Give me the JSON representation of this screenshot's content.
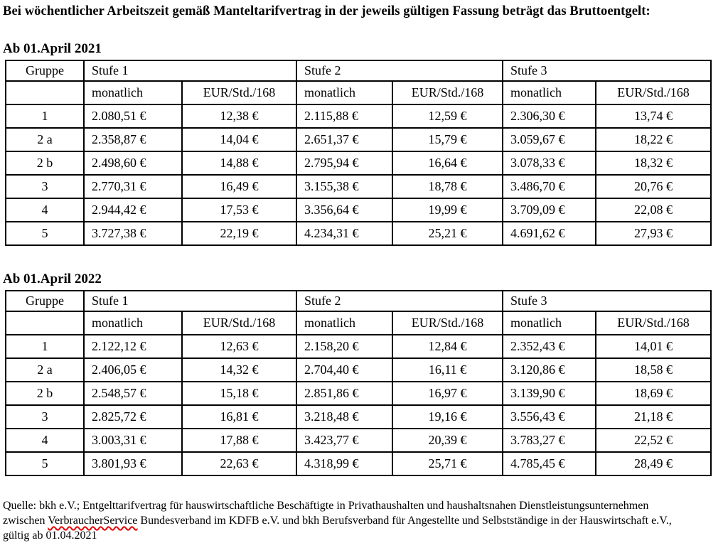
{
  "title": "Bei wöchentlicher Arbeitszeit gemäß Manteltarifvertrag in der jeweils gültigen Fassung beträgt das Bruttoentgelt:",
  "sections": [
    {
      "heading": "Ab 01.April 2021",
      "headers": {
        "group": "Gruppe",
        "stufe1": "Stufe 1",
        "stufe2": "Stufe 2",
        "stufe3": "Stufe 3",
        "monthly": "monatlich",
        "per_hour": "EUR/Std./168"
      },
      "rows": [
        [
          "1",
          "2.080,51 €",
          "12,38 €",
          "2.115,88 €",
          "12,59 €",
          "2.306,30 €",
          "13,74 €"
        ],
        [
          "2 a",
          "2.358,87 €",
          "14,04 €",
          "2.651,37 €",
          "15,79 €",
          "3.059,67 €",
          "18,22 €"
        ],
        [
          "2 b",
          "2.498,60 €",
          "14,88 €",
          "2.795,94 €",
          "16,64 €",
          "3.078,33 €",
          "18,32 €"
        ],
        [
          "3",
          "2.770,31 €",
          "16,49 €",
          "3.155,38 €",
          "18,78 €",
          "3.486,70 €",
          "20,76 €"
        ],
        [
          "4",
          "2.944,42 €",
          "17,53 €",
          "3.356,64 €",
          "19,99 €",
          "3.709,09 €",
          "22,08 €"
        ],
        [
          "5",
          "3.727,38 €",
          "22,19 €",
          "4.234,31 €",
          "25,21 €",
          "4.691,62 €",
          "27,93 €"
        ]
      ]
    },
    {
      "heading": "Ab 01.April 2022",
      "headers": {
        "group": "Gruppe",
        "stufe1": "Stufe 1",
        "stufe2": "Stufe 2",
        "stufe3": "Stufe 3",
        "monthly": "monatlich",
        "per_hour": "EUR/Std./168"
      },
      "rows": [
        [
          "1",
          "2.122,12 €",
          "12,63 €",
          "2.158,20 €",
          "12,84 €",
          "2.352,43 €",
          "14,01 €"
        ],
        [
          "2 a",
          "2.406,05 €",
          "14,32 €",
          "2.704,40 €",
          "16,11 €",
          "3.120,86 €",
          "18,58 €"
        ],
        [
          "2 b",
          "2.548,57 €",
          "15,18 €",
          "2.851,86 €",
          "16,97 €",
          "3.139,90 €",
          "18,69 €"
        ],
        [
          "3",
          "2.825,72 €",
          "16,81 €",
          "3.218,48 €",
          "19,16 €",
          "3.556,43 €",
          "21,18 €"
        ],
        [
          "4",
          "3.003,31 €",
          "17,88 €",
          "3.423,77 €",
          "20,39 €",
          "3.783,27 €",
          "22,52 €"
        ],
        [
          "5",
          "3.801,93 €",
          "22,63 €",
          "4.318,99 €",
          "25,71 €",
          "4.785,45 €",
          "28,49 €"
        ]
      ]
    }
  ],
  "footer": {
    "line1": "Quelle: bkh e.V.; Entgelttarifvertrag für hauswirtschaftliche Beschäftigte in Privathaushalten und haushaltsnahen Dienstleistungsunternehmen",
    "line2_before": "zwischen ",
    "line2_word": "VerbraucherService",
    "line2_after": " Bundesverband im KDFB e.V. und bkh Berufsverband für Angestellte und Selbstständige in der Hauswirtschaft e.V.,",
    "line3": "gültig ab 01.04.2021",
    "spellcheck_underline_color": "#e40000"
  }
}
